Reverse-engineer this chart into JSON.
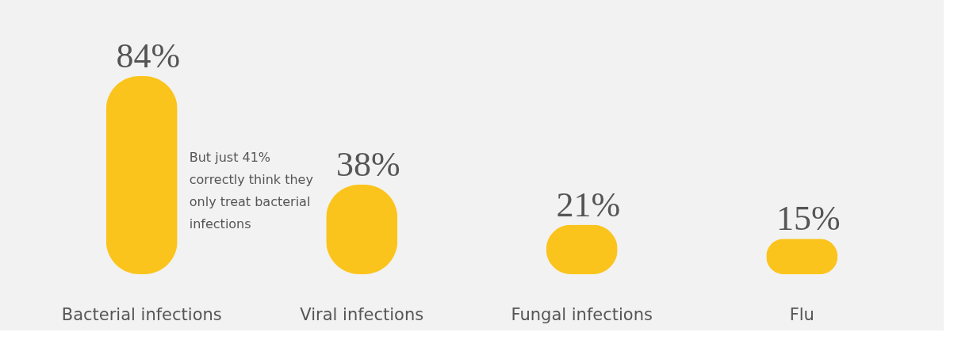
{
  "chart_data": {
    "type": "bar",
    "categories": [
      "Bacterial infections",
      "Viral infections",
      "Fungal infections",
      "Flu"
    ],
    "values": [
      84,
      38,
      21,
      15
    ],
    "color": "#fbc41c",
    "tick_labels": "x",
    "value_labels": [
      "84%",
      "38%",
      "21%",
      "15%"
    ],
    "annotations": [
      "But just 41% correctly think they only treat bacterial infections"
    ]
  }
}
